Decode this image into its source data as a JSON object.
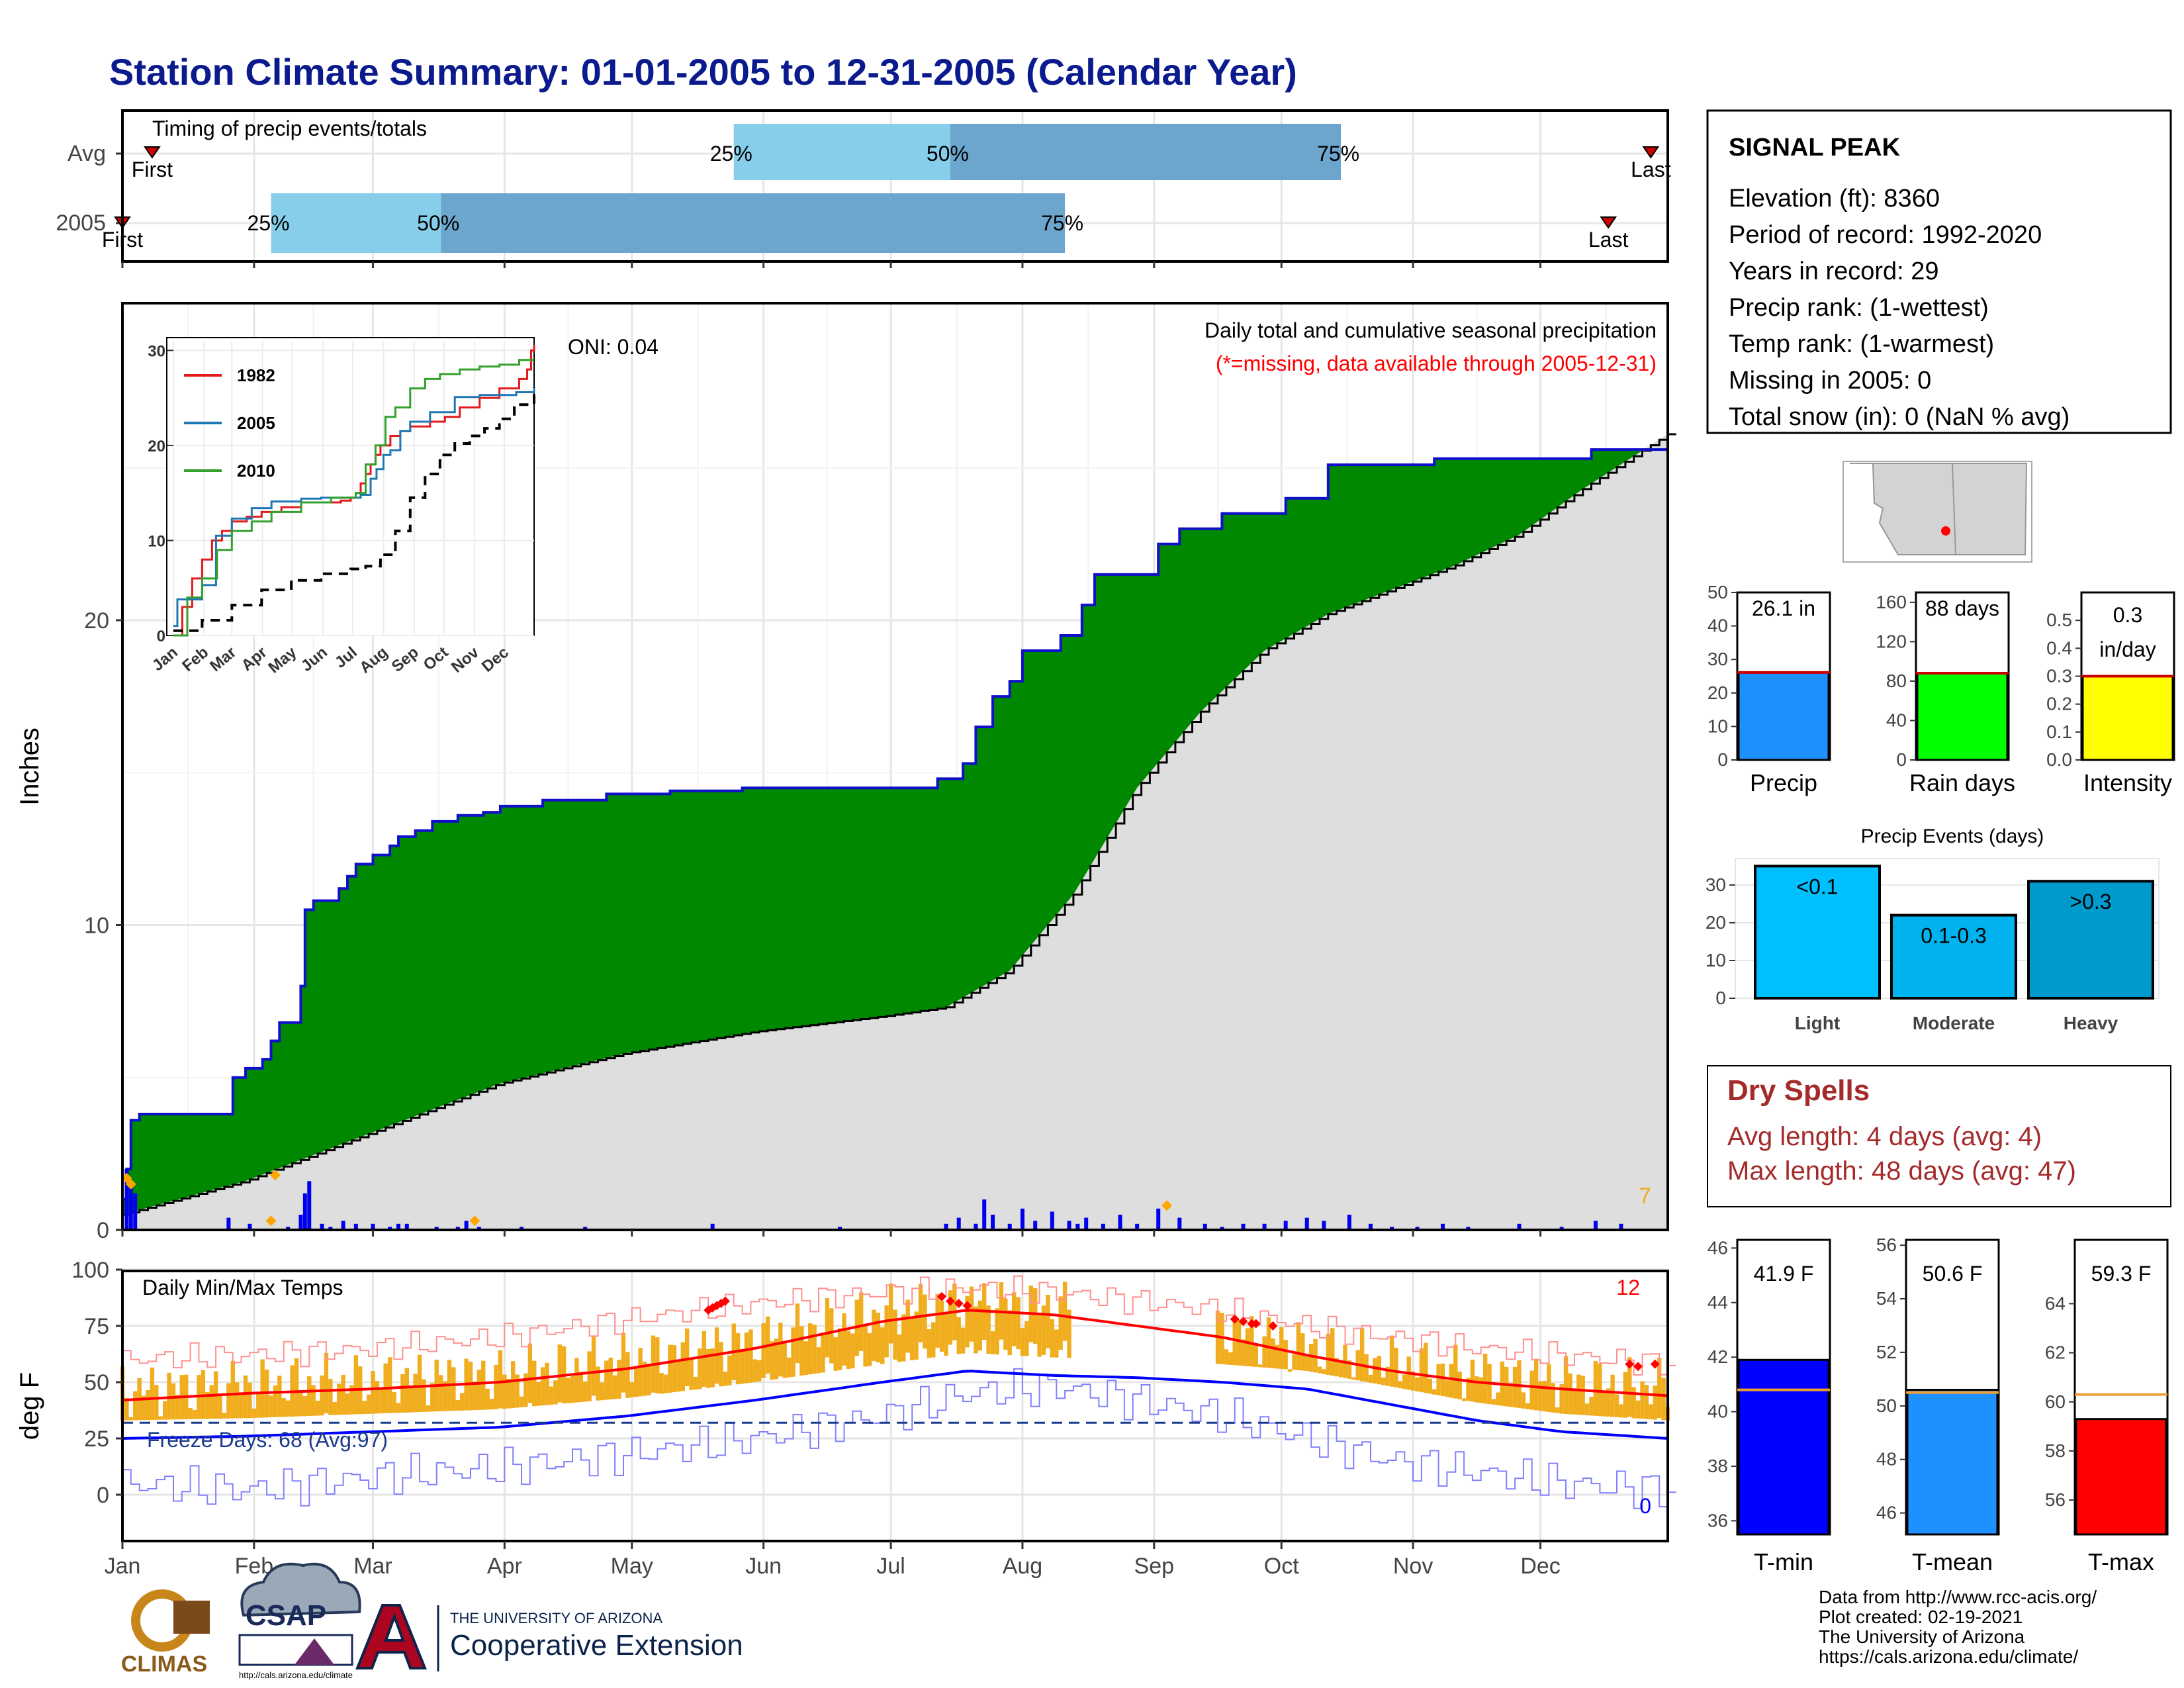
{
  "title": "Station Climate Summary: 01-01-2005 to 12-31-2005 (Calendar Year)",
  "months": [
    "Jan",
    "Feb",
    "Mar",
    "Apr",
    "May",
    "Jun",
    "Jul",
    "Aug",
    "Sep",
    "Oct",
    "Nov",
    "Dec"
  ],
  "colors": {
    "green": "#008800",
    "lightblue": "#87ceeb",
    "midblue": "#6ca6cd",
    "precipbar": "#0000ee",
    "orange": "#f0ad1e",
    "red": "#ff0000",
    "blue": "#0000ff",
    "grey": "#dedede"
  },
  "timing": {
    "label": "Timing of precip events/totals",
    "rows": [
      {
        "name": "Avg",
        "first_day": 8,
        "q25_day": 145,
        "q50_day": 196,
        "q75_day": 288,
        "last_day": 361,
        "first_label": "First",
        "last_label": "Last",
        "p25": "25%",
        "p50": "50%",
        "p75": "75%"
      },
      {
        "name": "2005",
        "first_day": 1,
        "q25_day": 36,
        "q50_day": 76,
        "q75_day": 223,
        "last_day": 351,
        "first_label": "First",
        "last_label": "Last",
        "p25": "25%",
        "p50": "50%",
        "p75": "75%"
      }
    ]
  },
  "station": {
    "name": "SIGNAL PEAK",
    "lines": [
      "Elevation (ft): 8360",
      "Period of record: 1992-2020",
      "Years in record: 29",
      "Precip rank:  (1-wettest)",
      "Temp rank:  (1-warmest)",
      "Missing in 2005: 0",
      "Total snow (in): 0 (NaN % avg)"
    ]
  },
  "chart_data": [
    {
      "type": "area",
      "ylabel": "Inches",
      "title": "Daily total and cumulative seasonal precipitation",
      "note": "(*=missing, data available through 2005-12-31)",
      "oni": "ONI: 0.04",
      "count_label": "7",
      "ylim": [
        0,
        26
      ],
      "yticks": [
        0,
        10,
        20
      ],
      "series": [
        {
          "name": "2005 cumulative",
          "x": [
            1,
            2,
            3,
            5,
            26,
            27,
            30,
            34,
            36,
            38,
            43,
            44,
            46,
            52,
            54,
            56,
            60,
            64,
            66,
            70,
            74,
            80,
            86,
            90,
            100,
            115,
            130,
            147,
            165,
            190,
            193,
            199,
            202,
            206,
            210,
            213,
            222,
            227,
            230,
            245,
            250,
            260,
            275,
            285,
            310,
            347,
            365
          ],
          "values": [
            1.0,
            2.0,
            3.6,
            3.8,
            3.8,
            5.0,
            5.3,
            5.6,
            6.2,
            6.8,
            8.0,
            10.5,
            10.8,
            11.2,
            11.6,
            12.0,
            12.3,
            12.6,
            12.9,
            13.1,
            13.4,
            13.6,
            13.7,
            13.9,
            14.1,
            14.3,
            14.4,
            14.5,
            14.5,
            14.5,
            14.8,
            15.3,
            16.5,
            17.5,
            18.0,
            19.0,
            19.5,
            20.5,
            21.5,
            22.5,
            23.0,
            23.5,
            24.0,
            25.1,
            25.3,
            25.6,
            26.1
          ]
        },
        {
          "name": "Average cumulative",
          "x": [
            1,
            30,
            60,
            90,
            120,
            150,
            180,
            195,
            210,
            225,
            240,
            255,
            270,
            285,
            300,
            315,
            330,
            345,
            365
          ],
          "values": [
            0.5,
            1.6,
            3.2,
            4.8,
            5.8,
            6.5,
            7.0,
            7.3,
            8.5,
            11.0,
            14.5,
            17.0,
            19.0,
            20.2,
            21.0,
            21.8,
            22.8,
            24.3,
            26.1
          ]
        }
      ],
      "daily_bars": {
        "x": [
          2,
          3,
          4,
          26,
          31,
          40,
          43,
          44,
          45,
          48,
          50,
          53,
          56,
          60,
          64,
          66,
          68,
          75,
          80,
          82,
          85,
          95,
          110,
          140,
          170,
          195,
          198,
          202,
          204,
          206,
          210,
          213,
          216,
          220,
          224,
          226,
          228,
          232,
          236,
          240,
          245,
          250,
          256,
          260,
          265,
          270,
          275,
          280,
          284,
          290,
          295,
          300,
          306,
          312,
          318,
          330,
          340,
          348,
          354
        ],
        "values": [
          2.0,
          1.6,
          1.2,
          0.4,
          0.2,
          0.1,
          0.5,
          1.2,
          1.6,
          0.2,
          0.1,
          0.3,
          0.2,
          0.2,
          0.1,
          0.2,
          0.2,
          0.1,
          0.1,
          0.3,
          0.1,
          0.1,
          0.1,
          0.2,
          0.1,
          0.2,
          0.4,
          0.2,
          1.0,
          0.5,
          0.2,
          0.7,
          0.3,
          0.6,
          0.3,
          0.2,
          0.4,
          0.2,
          0.5,
          0.2,
          0.7,
          0.4,
          0.2,
          0.1,
          0.2,
          0.2,
          0.3,
          0.4,
          0.3,
          0.5,
          0.2,
          0.1,
          0.1,
          0.2,
          0.1,
          0.2,
          0.1,
          0.3,
          0.2
        ]
      },
      "missing_marks": {
        "x": [
          2,
          3,
          36,
          37,
          84,
          247
        ],
        "values": [
          1.7,
          1.5,
          0.3,
          1.8,
          0.3,
          0.8
        ]
      }
    },
    {
      "type": "line",
      "inset": true,
      "xlim": [
        1,
        365
      ],
      "ylim": [
        0,
        31
      ],
      "yticks": [
        0,
        10,
        20,
        30
      ],
      "series": [
        {
          "name": "1982",
          "color": "#e31a1c",
          "x": [
            1,
            10,
            20,
            30,
            40,
            50,
            60,
            75,
            90,
            110,
            130,
            150,
            170,
            180,
            185,
            190,
            195,
            200,
            205,
            210,
            220,
            230,
            240,
            260,
            275,
            290,
            310,
            330,
            350,
            358,
            362,
            365
          ],
          "values": [
            0,
            3,
            6,
            8,
            10,
            11,
            12,
            12.5,
            13,
            13.5,
            14,
            14,
            14.2,
            14.5,
            15,
            16,
            17,
            18,
            19,
            20,
            21,
            21.5,
            22,
            22.5,
            23,
            24,
            25,
            26,
            27,
            28,
            30,
            30.6
          ]
        },
        {
          "name": "2005",
          "color": "#1f78b4",
          "x": [
            1,
            5,
            30,
            44,
            60,
            80,
            100,
            130,
            150,
            170,
            190,
            200,
            206,
            213,
            220,
            230,
            240,
            260,
            285,
            310,
            347,
            365
          ],
          "values": [
            1,
            3.8,
            5.3,
            10.5,
            12.3,
            13.4,
            14.1,
            14.4,
            14.5,
            14.5,
            14.8,
            16.5,
            17.5,
            19,
            19.5,
            21.5,
            22.5,
            23.5,
            25.1,
            25.3,
            25.6,
            26.1
          ]
        },
        {
          "name": "2010",
          "color": "#33a02c",
          "x": [
            1,
            15,
            30,
            45,
            60,
            80,
            100,
            130,
            160,
            185,
            195,
            205,
            215,
            225,
            240,
            255,
            270,
            290,
            310,
            330,
            350,
            365
          ],
          "values": [
            0,
            4,
            6,
            9,
            11,
            12,
            13,
            14,
            14.5,
            15,
            18,
            20,
            23,
            24,
            26,
            27,
            27.5,
            28,
            28.3,
            28.5,
            29,
            29
          ]
        },
        {
          "name": "Average",
          "color": "#000000",
          "dashed": true,
          "x": [
            1,
            30,
            60,
            90,
            120,
            150,
            180,
            195,
            210,
            225,
            240,
            255,
            270,
            285,
            300,
            315,
            330,
            345,
            365
          ],
          "values": [
            0.5,
            1.6,
            3.2,
            4.8,
            5.8,
            6.5,
            7.0,
            7.3,
            8.5,
            11.0,
            14.5,
            17.0,
            19.0,
            20.2,
            21.0,
            21.8,
            22.8,
            24.3,
            26.1
          ]
        }
      ]
    },
    {
      "type": "line",
      "title": "Daily Min/Max Temps",
      "ylabel": "deg F",
      "ylim": [
        -15,
        100
      ],
      "yticks": [
        0,
        25,
        50,
        75,
        100
      ],
      "freeze_label": "Freeze Days: 68 (Avg:97)",
      "count_high": "12",
      "count_low": "0",
      "freezing_line": 32,
      "smooth_max": {
        "x": [
          1,
          30,
          60,
          90,
          120,
          150,
          180,
          200,
          220,
          240,
          260,
          280,
          300,
          320,
          340,
          365
        ],
        "values": [
          42,
          45,
          47,
          50,
          56,
          65,
          77,
          82,
          80,
          75,
          70,
          62,
          55,
          50,
          47,
          44
        ]
      },
      "smooth_min": {
        "x": [
          1,
          30,
          60,
          90,
          120,
          150,
          180,
          200,
          220,
          240,
          260,
          280,
          300,
          320,
          340,
          365
        ],
        "values": [
          25,
          26,
          28,
          30,
          35,
          42,
          50,
          55,
          53,
          52,
          50,
          47,
          40,
          33,
          28,
          25
        ]
      },
      "record_max": {
        "x": [
          1,
          30,
          60,
          90,
          120,
          150,
          180,
          200,
          220,
          240,
          260,
          280,
          300,
          320,
          340,
          365
        ],
        "values": [
          60,
          62,
          65,
          70,
          78,
          85,
          90,
          92,
          90,
          86,
          82,
          75,
          70,
          65,
          62,
          58
        ]
      },
      "record_min": {
        "x": [
          1,
          30,
          60,
          90,
          120,
          150,
          180,
          200,
          220,
          240,
          260,
          280,
          300,
          320,
          340,
          365
        ],
        "values": [
          5,
          2,
          8,
          12,
          18,
          25,
          35,
          45,
          48,
          42,
          35,
          25,
          15,
          10,
          5,
          2
        ]
      },
      "range_gap": [
        225,
        258
      ],
      "record_high_marks": {
        "x": [
          139,
          140,
          141,
          142,
          143,
          194,
          196,
          198,
          200,
          263,
          265,
          267,
          268,
          272,
          356,
          358,
          362
        ],
        "values": [
          82,
          83,
          84,
          85,
          86,
          88,
          86,
          85,
          84,
          78,
          77,
          76,
          76,
          75,
          58,
          57,
          58
        ]
      }
    },
    {
      "type": "bar",
      "name": "precip-summary",
      "categories": [
        "Precip",
        "Rain days",
        "Intensity"
      ],
      "values": [
        26.1,
        88,
        0.3
      ],
      "averages": [
        26.1,
        88,
        0.3
      ],
      "labels": [
        "26.1 in",
        "88 days",
        "0.3 in/day"
      ],
      "ylims": [
        [
          0,
          50
        ],
        [
          0,
          170
        ],
        [
          0,
          0.6
        ]
      ],
      "yticks": [
        [
          0,
          10,
          20,
          30,
          40,
          50
        ],
        [
          0,
          40,
          80,
          120,
          160
        ],
        [
          0.0,
          0.1,
          0.2,
          0.3,
          0.4,
          0.5
        ]
      ],
      "colors": [
        "#1e90ff",
        "#00ff00",
        "#ffff00"
      ]
    },
    {
      "type": "bar",
      "name": "precip-events",
      "title": "Precip Events (days)",
      "categories": [
        "Light",
        "Moderate",
        "Heavy"
      ],
      "values": [
        35,
        22,
        31
      ],
      "labels": [
        "<0.1",
        "0.1-0.3",
        ">0.3"
      ],
      "ylim": [
        0,
        37
      ],
      "yticks": [
        0,
        10,
        20,
        30
      ],
      "colors": [
        "#00bfff",
        "#00b2ee",
        "#009acd"
      ]
    },
    {
      "type": "bar",
      "name": "temp-summary",
      "categories": [
        "T-min",
        "T-mean",
        "T-max"
      ],
      "values": [
        41.9,
        50.6,
        59.3
      ],
      "averages": [
        40.8,
        50.5,
        60.3
      ],
      "labels": [
        "41.9 F",
        "50.6 F",
        "59.3 F"
      ],
      "ylims": [
        [
          35.5,
          46.3
        ],
        [
          45.2,
          56.2
        ],
        [
          54.6,
          66.6
        ]
      ],
      "yticks": [
        [
          36,
          38,
          40,
          42,
          44,
          46
        ],
        [
          46,
          48,
          50,
          52,
          54,
          56
        ],
        [
          56,
          58,
          60,
          62,
          64
        ]
      ],
      "colors": [
        "#0000ff",
        "#1e90ff",
        "#ff0000"
      ]
    }
  ],
  "dry_spells": {
    "title": "Dry Spells",
    "avg": "Avg length: 4 days (avg: 4)",
    "max": "Max length: 48 days (avg: 47)"
  },
  "footer": {
    "lines": [
      "Data from http://www.rcc-acis.org/",
      "Plot created: 02-19-2021",
      "The University of Arizona",
      "https://cals.arizona.edu/climate/"
    ],
    "climas": "CLIMAS",
    "csap": "CSAP",
    "csap_url": "http://cals.arizona.edu/climate",
    "ua_small": "THE UNIVERSITY OF ARIZONA",
    "ua_big": "Cooperative Extension"
  }
}
